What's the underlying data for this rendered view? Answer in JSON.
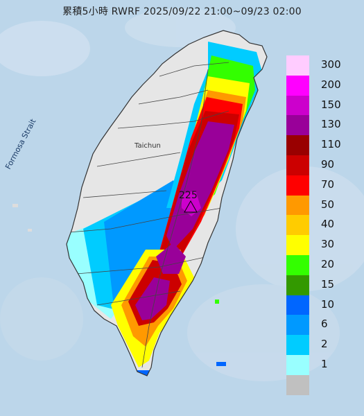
{
  "title": "累積5小時 RWRF 2025/09/22 21:00~09/23 02:00",
  "map_labels": {
    "strait": "Formosa Strait",
    "city": "Taichun",
    "max_value": "225"
  },
  "legend": [
    {
      "label": "300",
      "color": "#ffccff"
    },
    {
      "label": "200",
      "color": "#ff00ff"
    },
    {
      "label": "150",
      "color": "#cc00cc"
    },
    {
      "label": "130",
      "color": "#990099"
    },
    {
      "label": "110",
      "color": "#990000"
    },
    {
      "label": "90",
      "color": "#cc0000"
    },
    {
      "label": "70",
      "color": "#ff0000"
    },
    {
      "label": "50",
      "color": "#ff9900"
    },
    {
      "label": "40",
      "color": "#ffcc00"
    },
    {
      "label": "30",
      "color": "#ffff00"
    },
    {
      "label": "20",
      "color": "#33ff00"
    },
    {
      "label": "15",
      "color": "#339900"
    },
    {
      "label": "10",
      "color": "#0066ff"
    },
    {
      "label": "6",
      "color": "#0099ff"
    },
    {
      "label": "2",
      "color": "#00ccff"
    },
    {
      "label": "1",
      "color": "#99ffff"
    },
    {
      "label": "",
      "color": "#c0c0c0"
    }
  ]
}
